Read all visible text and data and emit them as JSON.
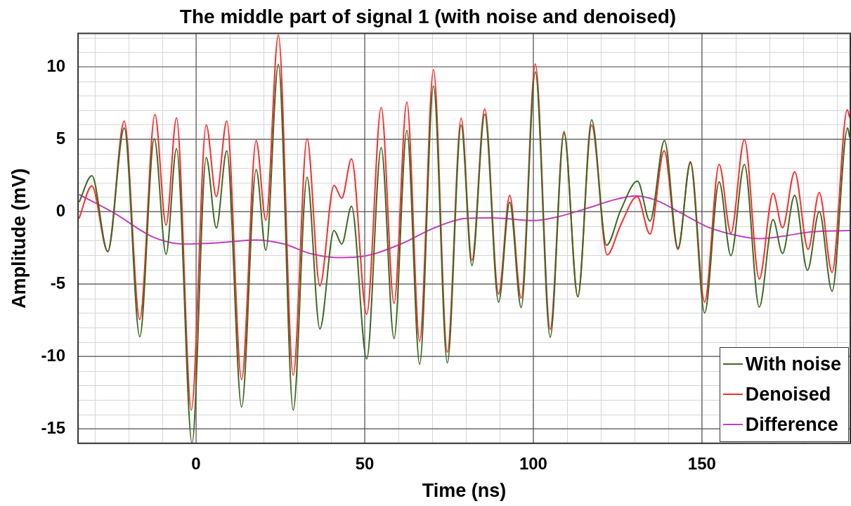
{
  "chart_data": {
    "type": "line",
    "title": "The middle part of signal 1 (with noise and denoised)",
    "xlabel": "Time (ns)",
    "ylabel": "Amplitude (mV)",
    "xlim": [
      -35,
      194
    ],
    "ylim": [
      -16,
      12.3
    ],
    "xticks": [
      0,
      50,
      100,
      150
    ],
    "yticks": [
      -15,
      -10,
      -5,
      0,
      5,
      10
    ],
    "grid": true,
    "legend": "bottom right",
    "marker": "none",
    "line_style": "solid",
    "series": [
      {
        "name": "With noise",
        "color": "#3d6b22",
        "x": [
          -34.7,
          -30.9,
          -26.2,
          -21.3,
          -16.7,
          -12.4,
          -8.9,
          -5.8,
          -1.2,
          3.0,
          6.0,
          9.1,
          13.5,
          17.8,
          20.7,
          24.4,
          28.8,
          32.9,
          36.7,
          40.9,
          43.2,
          46.1,
          50.6,
          54.9,
          58.7,
          62.5,
          66.3,
          70.4,
          74.5,
          78.6,
          81.8,
          85.6,
          89.7,
          93.0,
          96.4,
          100.6,
          105.0,
          109.1,
          113.2,
          117.3,
          121.7,
          125.9,
          130.9,
          134.6,
          138.9,
          142.9,
          146.6,
          150.8,
          155.1,
          158.6,
          162.6,
          167.0,
          171.1,
          173.9,
          177.5,
          181.3,
          184.8,
          188.6,
          193.2,
          193.8
        ],
        "values": [
          0.65,
          2.48,
          -2.76,
          5.78,
          -8.64,
          5.04,
          -2.95,
          4.35,
          -16.0,
          3.73,
          -1.12,
          4.2,
          -13.5,
          2.9,
          -2.67,
          10.17,
          -13.7,
          2.37,
          -8.1,
          -1.31,
          -2.24,
          0.37,
          -10.17,
          4.42,
          -8.77,
          5.6,
          -10.54,
          8.68,
          -10.45,
          5.97,
          -3.73,
          6.72,
          -6.25,
          0.65,
          -6.62,
          9.65,
          -8.68,
          5.41,
          -5.88,
          6.34,
          -2.33,
          0.09,
          2.1,
          -0.65,
          4.9,
          -2.52,
          3.36,
          -7.0,
          2.05,
          -3.04,
          3.26,
          -6.59,
          -0.56,
          -2.89,
          1.12,
          -4.05,
          0.0,
          -5.5,
          5.78,
          5.13
        ]
      },
      {
        "name": "Denoised",
        "color": "#ff2b2b",
        "x": [
          -34.7,
          -30.9,
          -26.2,
          -21.3,
          -16.7,
          -12.2,
          -8.9,
          -5.8,
          -1.4,
          3.0,
          6.0,
          9.1,
          13.5,
          17.8,
          20.7,
          24.4,
          28.8,
          32.9,
          36.7,
          40.9,
          43.2,
          46.1,
          50.6,
          54.9,
          58.7,
          62.5,
          66.3,
          70.4,
          74.5,
          78.6,
          81.8,
          85.6,
          89.7,
          93.0,
          96.4,
          100.6,
          105.0,
          109.1,
          113.2,
          117.3,
          121.9,
          125.9,
          130.8,
          134.6,
          138.8,
          142.9,
          146.6,
          150.8,
          155.1,
          158.6,
          162.6,
          167.0,
          171.1,
          173.9,
          177.5,
          181.5,
          184.8,
          188.6,
          193.1,
          193.8
        ],
        "values": [
          -0.47,
          1.77,
          -2.76,
          6.25,
          -7.46,
          6.7,
          -0.93,
          6.47,
          -13.7,
          5.97,
          1.03,
          6.25,
          -11.6,
          4.9,
          -0.6,
          12.2,
          -11.3,
          5.04,
          -5.13,
          1.81,
          0.93,
          3.64,
          -7.09,
          7.18,
          -6.34,
          7.56,
          -8.96,
          9.8,
          -9.7,
          6.44,
          -3.36,
          7.09,
          -5.69,
          1.12,
          -5.97,
          10.2,
          -8.12,
          5.54,
          -5.88,
          5.97,
          -2.99,
          -0.93,
          1.03,
          -1.55,
          4.2,
          -2.61,
          3.45,
          -6.25,
          3.26,
          -1.49,
          4.98,
          -4.66,
          1.25,
          -1.12,
          2.74,
          -2.61,
          1.31,
          -4.2,
          7.03,
          6.5
        ]
      },
      {
        "name": "Difference",
        "color": "#c040c0",
        "x": [
          -34.7,
          -24.3,
          -12.6,
          -3.3,
          6.7,
          17.6,
          26.1,
          33.9,
          41.6,
          49.1,
          60.7,
          70.7,
          80.0,
          87.8,
          100.2,
          107.1,
          116.7,
          124.4,
          130.6,
          136.7,
          143.7,
          151.4,
          159.1,
          166.8,
          174.5,
          182.3,
          193.8
        ],
        "values": [
          1.18,
          -0.1,
          -1.77,
          -2.24,
          -2.15,
          -1.96,
          -2.24,
          -2.9,
          -3.17,
          -3.1,
          -2.24,
          -1.12,
          -0.47,
          -0.43,
          -0.62,
          -0.37,
          0.28,
          0.84,
          1.08,
          0.75,
          -0.09,
          -1.03,
          -1.59,
          -1.87,
          -1.68,
          -1.4,
          -1.31
        ]
      }
    ]
  }
}
